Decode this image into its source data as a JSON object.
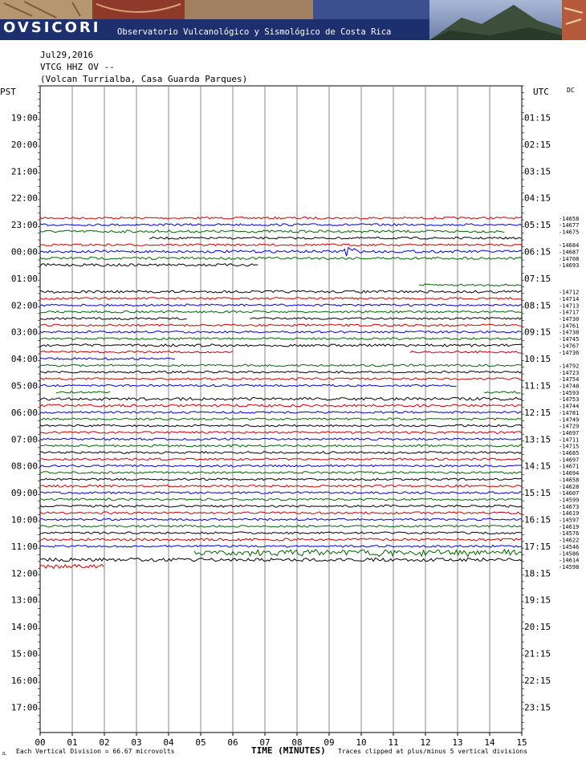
{
  "banner": {
    "logo": "OVSICORI",
    "subtitle": "Observatorio Vulcanológico y Sismológico de Costa Rica"
  },
  "header": {
    "date": "Jul29,2016",
    "station": "VTCG HHZ OV --",
    "location": "(Volcan Turrialba, Casa Guarda Parques)",
    "left_axis_title": "PST",
    "right_axis_title": "UTC",
    "dc_label": "DC"
  },
  "footer": {
    "scale_note": "Each Vertical Division =   66.67 microvolts",
    "x_title": "TIME (MINUTES)",
    "clip_note": "Traces clipped at plus/minus 5 vertical divisions",
    "corner_mark": "JL"
  },
  "colors": {
    "black": "#000000",
    "red": "#cc0000",
    "blue": "#0000cc",
    "green": "#006600",
    "grid": "#888888"
  },
  "chart_data": {
    "type": "line",
    "title": "VTCG HHZ OV -- (Volcan Turrialba, Casa Guarda Parques) Jul29,2016",
    "xlabel": "TIME (MINUTES)",
    "x_ticks": [
      "00",
      "01",
      "02",
      "03",
      "04",
      "05",
      "06",
      "07",
      "08",
      "09",
      "10",
      "11",
      "12",
      "13",
      "14",
      "15"
    ],
    "xlim": [
      0,
      15
    ],
    "left_hour_labels": [
      "19:00",
      "20:00",
      "21:00",
      "22:00",
      "23:00",
      "00:00",
      "01:00",
      "02:00",
      "03:00",
      "04:00",
      "05:00",
      "06:00",
      "07:00",
      "08:00",
      "09:00",
      "10:00",
      "11:00",
      "12:00",
      "13:00",
      "14:00",
      "15:00",
      "16:00",
      "17:00"
    ],
    "right_hour_labels": [
      "01:15",
      "02:15",
      "03:15",
      "04:15",
      "05:15",
      "06:15",
      "07:15",
      "08:15",
      "09:15",
      "10:15",
      "11:15",
      "12:15",
      "13:15",
      "14:15",
      "15:15",
      "16:15",
      "17:15",
      "18:15",
      "19:15",
      "20:15",
      "21:15",
      "22:15",
      "23:15"
    ],
    "color_cycle": [
      "red",
      "blue",
      "green",
      "black"
    ],
    "first_trace_hour": 4,
    "traces": [
      {
        "dc": "-14658",
        "start": 0,
        "end": 15,
        "amp": 1
      },
      {
        "dc": "-14677",
        "start": 0,
        "end": 15,
        "amp": 1
      },
      {
        "dc": "-14675",
        "start": 0,
        "end": 14.5,
        "amp": 1.2
      },
      {
        "dc": "",
        "start": 3.4,
        "end": 15,
        "amp": 1
      },
      {
        "dc": "-14684",
        "start": 0,
        "end": 15,
        "amp": 1
      },
      {
        "dc": "-14687",
        "start": 0,
        "end": 15,
        "amp": 1.2,
        "event": 9.6
      },
      {
        "dc": "-14708",
        "start": 0,
        "end": 15,
        "amp": 1.2
      },
      {
        "dc": "-14693",
        "start": 0,
        "end": 6.8,
        "amp": 1.2
      },
      {
        "dc": "",
        "start": 0,
        "end": 0,
        "amp": 0
      },
      {
        "dc": "",
        "start": 0,
        "end": 0,
        "amp": 0
      },
      {
        "dc": "",
        "start": 11.8,
        "end": 15,
        "amp": 1
      },
      {
        "dc": "-14712",
        "start": 0,
        "end": 15,
        "amp": 1.2
      },
      {
        "dc": "-14714",
        "start": 0,
        "end": 15,
        "amp": 1
      },
      {
        "dc": "-14713",
        "start": 0,
        "end": 15,
        "amp": 1
      },
      {
        "dc": "-14717",
        "start": 0,
        "end": 15,
        "amp": 1
      },
      {
        "dc": "-14730",
        "start": 0,
        "end": 15,
        "amp": 1,
        "gaps": [
          [
            4.6,
            6.5
          ]
        ]
      },
      {
        "dc": "-14761",
        "start": 0,
        "end": 15,
        "amp": 1
      },
      {
        "dc": "-14738",
        "start": 0,
        "end": 15,
        "amp": 1
      },
      {
        "dc": "-14745",
        "start": 0,
        "end": 15,
        "amp": 1
      },
      {
        "dc": "-14767",
        "start": 0,
        "end": 15,
        "amp": 1.2
      },
      {
        "dc": "-14736",
        "start": 0,
        "end": 15,
        "amp": 1,
        "gaps": [
          [
            6,
            11.5
          ]
        ]
      },
      {
        "dc": "",
        "start": 0,
        "end": 4.2,
        "amp": 1
      },
      {
        "dc": "-14792",
        "start": 0,
        "end": 15,
        "amp": 1
      },
      {
        "dc": "-14723",
        "start": 0,
        "end": 15,
        "amp": 1
      },
      {
        "dc": "-14754",
        "start": 0,
        "end": 15,
        "amp": 1
      },
      {
        "dc": "-14748",
        "start": 0,
        "end": 13,
        "amp": 1
      },
      {
        "dc": "-14593",
        "start": 0.5,
        "end": 15,
        "amp": 1,
        "gaps": [
          [
            2.2,
            13.8
          ]
        ]
      },
      {
        "dc": "-14753",
        "start": 0,
        "end": 15,
        "amp": 1.4
      },
      {
        "dc": "-14744",
        "start": 0,
        "end": 15,
        "amp": 1.2
      },
      {
        "dc": "-14781",
        "start": 0,
        "end": 15,
        "amp": 1
      },
      {
        "dc": "-14749",
        "start": 0,
        "end": 15,
        "amp": 1
      },
      {
        "dc": "-14729",
        "start": 0,
        "end": 15,
        "amp": 1
      },
      {
        "dc": "-14697",
        "start": 0,
        "end": 15,
        "amp": 1
      },
      {
        "dc": "-14711",
        "start": 0,
        "end": 15,
        "amp": 1
      },
      {
        "dc": "-14715",
        "start": 0,
        "end": 15,
        "amp": 1
      },
      {
        "dc": "-14685",
        "start": 0,
        "end": 15,
        "amp": 1
      },
      {
        "dc": "-14697",
        "start": 0,
        "end": 15,
        "amp": 1
      },
      {
        "dc": "-14671",
        "start": 0,
        "end": 15,
        "amp": 1
      },
      {
        "dc": "-14694",
        "start": 0,
        "end": 15,
        "amp": 1
      },
      {
        "dc": "-14658",
        "start": 0,
        "end": 15,
        "amp": 1
      },
      {
        "dc": "-14628",
        "start": 0,
        "end": 15,
        "amp": 1
      },
      {
        "dc": "-14607",
        "start": 0,
        "end": 15,
        "amp": 1
      },
      {
        "dc": "-14599",
        "start": 0,
        "end": 15,
        "amp": 1
      },
      {
        "dc": "-14673",
        "start": 0,
        "end": 15,
        "amp": 1
      },
      {
        "dc": "-14619",
        "start": 0,
        "end": 15,
        "amp": 1
      },
      {
        "dc": "-14597",
        "start": 0,
        "end": 15,
        "amp": 1
      },
      {
        "dc": "-14619",
        "start": 0,
        "end": 15,
        "amp": 1
      },
      {
        "dc": "-14576",
        "start": 0,
        "end": 15,
        "amp": 1
      },
      {
        "dc": "-14622",
        "start": 0,
        "end": 15,
        "amp": 1.2
      },
      {
        "dc": "-14546",
        "start": 0,
        "end": 15,
        "amp": 1
      },
      {
        "dc": "-14586",
        "start": 4.8,
        "end": 15,
        "amp": 2,
        "burst": 6.5
      },
      {
        "dc": "-14614",
        "start": 0,
        "end": 15,
        "amp": 1.6
      },
      {
        "dc": "-14598",
        "start": 0,
        "end": 2,
        "amp": 2
      }
    ]
  }
}
